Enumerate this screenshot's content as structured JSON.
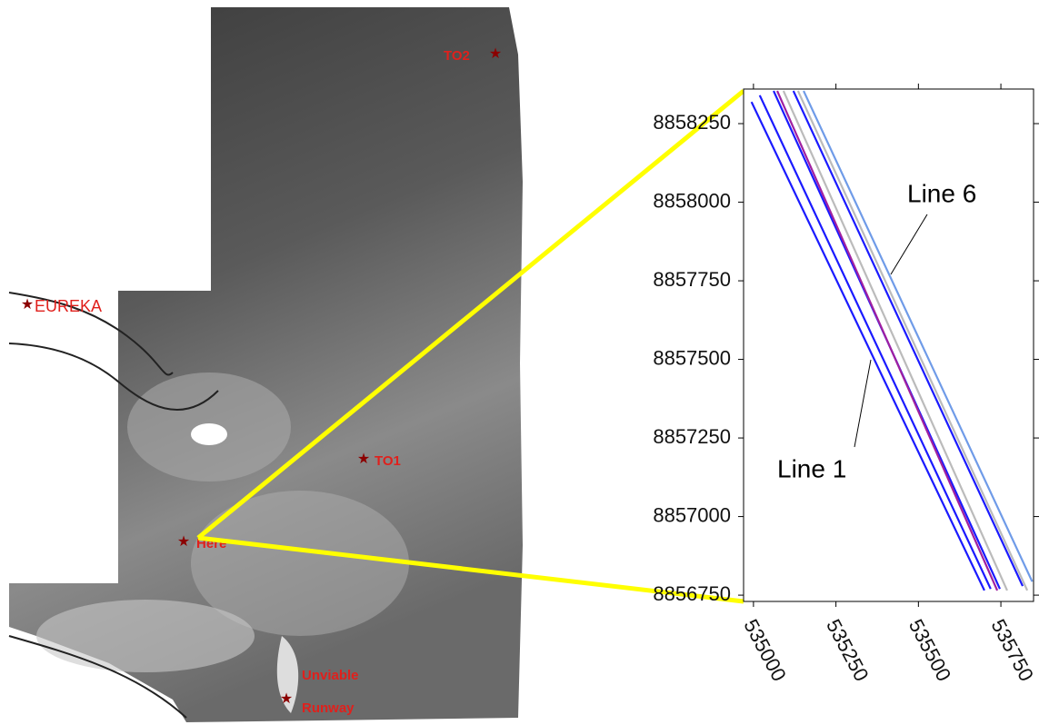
{
  "map": {
    "labels": [
      "TO2",
      "EUREKA",
      "TO1",
      "Here",
      "Unviable",
      "Runway"
    ]
  },
  "chart_data": {
    "type": "line",
    "annotations": [
      "Line 6",
      "Line 1"
    ],
    "xlim": [
      534970,
      535849
    ],
    "xticks": [
      535000,
      535250,
      535500,
      535750
    ],
    "ylim": [
      8856730,
      8858360
    ],
    "yticks": [
      8856750,
      8857000,
      8857250,
      8857500,
      8857750,
      8858000,
      8858250
    ],
    "series": [
      {
        "color": "#1a1aff",
        "x": [
          534994,
          535700
        ],
        "values": [
          8858319,
          8856765
        ]
      },
      {
        "color": "#1a1aff",
        "x": [
          535019,
          535719
        ],
        "values": [
          8858340,
          8856770
        ]
      },
      {
        "color": "#1a1aff",
        "x": [
          535061,
          535747
        ],
        "values": [
          8858354,
          8856770
        ]
      },
      {
        "color": "#a020a0",
        "x": [
          535072,
          535739
        ],
        "values": [
          8858354,
          8856765
        ]
      },
      {
        "color": "#bbbbbb",
        "x": [
          535091,
          535769
        ],
        "values": [
          8858354,
          8856765
        ]
      },
      {
        "color": "#1a1aff",
        "x": [
          535121,
          535816
        ],
        "values": [
          8858354,
          8856779
        ]
      },
      {
        "color": "#bbbbbb",
        "x": [
          535135,
          535830
        ],
        "values": [
          8858354,
          8856765
        ]
      },
      {
        "color": "#6f9be8",
        "x": [
          535152,
          535845
        ],
        "values": [
          8858354,
          8856793
        ]
      }
    ]
  }
}
